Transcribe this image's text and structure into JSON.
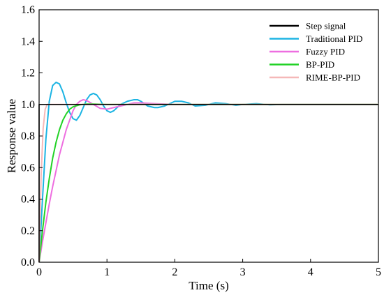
{
  "chart_data": {
    "type": "line",
    "xlabel": "Time (s)",
    "ylabel": "Response value",
    "xlim": [
      0,
      5
    ],
    "ylim": [
      0,
      1.6
    ],
    "x_ticks": [
      0,
      1,
      2,
      3,
      4,
      5
    ],
    "x_tick_labels": [
      "0",
      "1",
      "2",
      "3",
      "4",
      "5"
    ],
    "y_ticks": [
      0,
      0.2,
      0.4,
      0.6,
      0.8,
      1.0,
      1.2,
      1.4,
      1.6
    ],
    "y_tick_labels": [
      "0.0",
      "0.2",
      "0.4",
      "0.6",
      "0.8",
      "1.0",
      "1.2",
      "1.4",
      "1.6"
    ],
    "grid": false,
    "legend_position": "top-right",
    "series": [
      {
        "name": "Step signal",
        "color": "#000000",
        "x": [
          0,
          0.0,
          5
        ],
        "y": [
          0,
          1.0,
          1.0
        ]
      },
      {
        "name": "Traditional PID",
        "color": "#1cb4e3",
        "x": [
          0,
          0.05,
          0.1,
          0.15,
          0.2,
          0.25,
          0.3,
          0.35,
          0.4,
          0.45,
          0.5,
          0.55,
          0.6,
          0.65,
          0.7,
          0.75,
          0.8,
          0.85,
          0.9,
          0.95,
          1.0,
          1.05,
          1.1,
          1.15,
          1.2,
          1.3,
          1.4,
          1.45,
          1.5,
          1.6,
          1.7,
          1.75,
          1.85,
          2.0,
          2.1,
          2.2,
          2.3,
          2.45,
          2.6,
          2.75,
          2.9,
          3.0,
          3.2,
          3.4,
          3.6,
          3.8,
          4.0,
          4.2,
          4.4,
          4.6,
          4.8,
          5.0
        ],
        "y": [
          0.0,
          0.4,
          0.78,
          1.02,
          1.12,
          1.14,
          1.13,
          1.08,
          1.01,
          0.95,
          0.91,
          0.9,
          0.93,
          0.98,
          1.03,
          1.06,
          1.07,
          1.06,
          1.03,
          0.99,
          0.96,
          0.95,
          0.96,
          0.98,
          1.0,
          1.02,
          1.03,
          1.03,
          1.02,
          0.99,
          0.98,
          0.98,
          0.99,
          1.02,
          1.02,
          1.01,
          0.99,
          0.995,
          1.01,
          1.005,
          0.995,
          1.0,
          1.005,
          0.998,
          1.0,
          1.0,
          1.0,
          1.0,
          1.0,
          1.0,
          1.0,
          1.0
        ]
      },
      {
        "name": "Fuzzy PID",
        "color": "#ee6ee0",
        "x": [
          0,
          0.05,
          0.1,
          0.15,
          0.2,
          0.3,
          0.4,
          0.5,
          0.55,
          0.6,
          0.65,
          0.7,
          0.8,
          0.9,
          1.0,
          1.1,
          1.2,
          1.3,
          1.4,
          1.5,
          1.7,
          2.0,
          2.5,
          3.0,
          4.0,
          5.0
        ],
        "y": [
          0.0,
          0.13,
          0.25,
          0.37,
          0.48,
          0.68,
          0.84,
          0.96,
          1.0,
          1.02,
          1.03,
          1.025,
          1.0,
          0.975,
          0.97,
          0.98,
          0.99,
          1.0,
          1.01,
          1.01,
          1.005,
          1.0,
          1.0,
          1.0,
          1.0,
          1.0
        ]
      },
      {
        "name": "BP-PID",
        "color": "#22d226",
        "x": [
          0,
          0.05,
          0.1,
          0.15,
          0.2,
          0.25,
          0.3,
          0.35,
          0.4,
          0.45,
          0.5,
          0.6,
          0.7,
          0.8,
          1.0,
          1.5,
          2.0,
          3.0,
          4.0,
          5.0
        ],
        "y": [
          0.0,
          0.2,
          0.38,
          0.53,
          0.66,
          0.76,
          0.84,
          0.9,
          0.94,
          0.97,
          0.985,
          0.998,
          1.003,
          1.003,
          1.0,
          1.0,
          1.0,
          1.0,
          1.0,
          1.0
        ]
      },
      {
        "name": "RIME-BP-PID",
        "color": "#f5b8b8",
        "x": [
          0,
          0.03,
          0.06,
          0.09,
          0.12,
          0.15,
          0.2,
          0.3,
          1.0,
          5.0
        ],
        "y": [
          0.0,
          0.55,
          0.85,
          0.97,
          1.0,
          1.0,
          1.0,
          1.0,
          1.0,
          1.0
        ]
      }
    ]
  }
}
